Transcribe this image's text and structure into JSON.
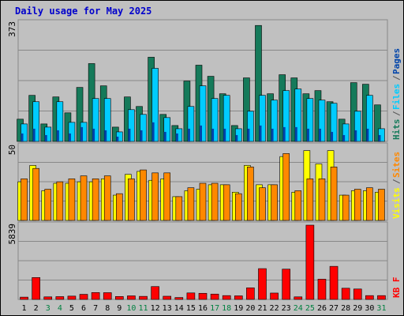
{
  "chart_data": {
    "type": "bar",
    "title": "Daily usage for May 2025",
    "categories": [
      "1",
      "2",
      "3",
      "4",
      "5",
      "6",
      "7",
      "8",
      "9",
      "10",
      "11",
      "12",
      "13",
      "14",
      "15",
      "16",
      "17",
      "18",
      "19",
      "20",
      "21",
      "22",
      "23",
      "24",
      "25",
      "26",
      "27",
      "28",
      "29",
      "30",
      "31"
    ],
    "weekend_days": [
      "3",
      "4",
      "10",
      "11",
      "17",
      "18",
      "24",
      "25",
      "31"
    ],
    "colors": {
      "hits": "#157a5a",
      "files": "#00ccff",
      "pages": "#0044aa",
      "visits": "#ffff00",
      "sites": "#ff8800",
      "kb": "#ff0000",
      "weekday_label": "#000000",
      "weekend_label": "#008040",
      "background": "#c0c0c0",
      "plot_background": "#c0c0c0"
    },
    "charts": [
      {
        "name": "hits_files_pages",
        "ymax": 373,
        "ytick_label": "373",
        "legend": [
          {
            "text": "Hits",
            "color": "#157a5a"
          },
          {
            "text": "Files",
            "color": "#00ccff"
          },
          {
            "text": "Pages",
            "color": "#0044aa"
          }
        ],
        "series": [
          {
            "name": "Hits",
            "values": [
              70,
              145,
              55,
              140,
              90,
              170,
              245,
              175,
              45,
              140,
              110,
              265,
              85,
              50,
              190,
              240,
              205,
              150,
              50,
              200,
              365,
              150,
              210,
              200,
              150,
              160,
              125,
              70,
              185,
              180,
              115
            ]
          },
          {
            "name": "Files",
            "values": [
              55,
              125,
              45,
              125,
              60,
              60,
              135,
              135,
              30,
              100,
              85,
              230,
              75,
              40,
              110,
              175,
              135,
              145,
              40,
              95,
              145,
              130,
              160,
              165,
              135,
              130,
              120,
              55,
              95,
              145,
              40
            ]
          },
          {
            "name": "Pages",
            "values": [
              25,
              40,
              20,
              35,
              25,
              45,
              40,
              35,
              15,
              40,
              35,
              60,
              30,
              25,
              40,
              50,
              40,
              40,
              20,
              40,
              50,
              40,
              45,
              45,
              40,
              40,
              30,
              20,
              35,
              40,
              20
            ]
          }
        ]
      },
      {
        "name": "visits_sites",
        "ymax": 50,
        "ytick_label": "50",
        "legend": [
          {
            "text": "Visits",
            "color": "#ffff00"
          },
          {
            "text": "Sites",
            "color": "#ff8800"
          }
        ],
        "series": [
          {
            "name": "Visits",
            "values": [
              26,
              37,
              20,
              25,
              25,
              26,
              26,
              28,
              17,
              31,
              33,
              27,
              28,
              16,
              20,
              21,
              24,
              24,
              19,
              37,
              24,
              24,
              43,
              19,
              47,
              38,
              47,
              17,
              20,
              20,
              19
            ]
          },
          {
            "name": "Sites",
            "values": [
              28,
              35,
              21,
              26,
              28,
              30,
              28,
              30,
              18,
              28,
              34,
              32,
              32,
              16,
              22,
              25,
              25,
              24,
              18,
              36,
              22,
              24,
              45,
              20,
              28,
              28,
              36,
              17,
              21,
              22,
              21
            ]
          }
        ]
      },
      {
        "name": "kbytes",
        "ymax": 5839,
        "ytick_label": "5839",
        "legend": [
          {
            "text": "KB F",
            "color": "#ff0000"
          }
        ],
        "series": [
          {
            "name": "KB F",
            "values": [
              180,
              1720,
              200,
              220,
              260,
              400,
              540,
              530,
              230,
              280,
              240,
              1010,
              250,
              150,
              510,
              480,
              420,
              300,
              280,
              910,
              2420,
              500,
              2380,
              200,
              5839,
              1590,
              2600,
              880,
              820,
              300,
              300
            ]
          }
        ]
      }
    ]
  }
}
